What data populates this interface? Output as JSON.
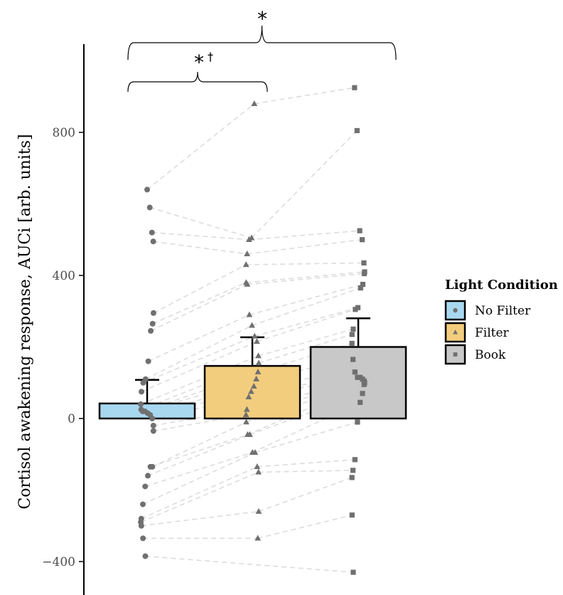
{
  "chart_data": {
    "type": "bar",
    "ylabel": "Cortisol awakening response, AUCi [arb. units]",
    "ylim": [
      -460,
      1000
    ],
    "yticks": [
      -400,
      0,
      400,
      800
    ],
    "categories": [
      "No Filter",
      "Filter",
      "Book"
    ],
    "colors": {
      "No Filter": "#a8d8f0",
      "Filter": "#f2cd7d",
      "Book": "#c8c8c8",
      "points": "#707070",
      "lines": "#dcdcdc"
    },
    "legend": {
      "title": "Light Condition",
      "items": [
        "No Filter",
        "Filter",
        "Book"
      ],
      "position": "right"
    },
    "bars": [
      {
        "name": "No Filter",
        "mean": 42,
        "error": 108,
        "marker": "circle"
      },
      {
        "name": "Filter",
        "mean": 147,
        "error": 227,
        "marker": "triangle"
      },
      {
        "name": "Book",
        "mean": 200,
        "error": 280,
        "marker": "square"
      }
    ],
    "points": {
      "No Filter": [
        640,
        590,
        520,
        495,
        295,
        265,
        245,
        160,
        110,
        100,
        75,
        40,
        25,
        20,
        20,
        15,
        10,
        0,
        -20,
        -35,
        -135,
        -135,
        -160,
        -190,
        -240,
        -280,
        -290,
        -300,
        -335,
        -385
      ],
      "Filter": [
        880,
        505,
        500,
        460,
        430,
        380,
        375,
        290,
        260,
        230,
        215,
        175,
        155,
        130,
        110,
        90,
        75,
        60,
        25,
        10,
        -10,
        -45,
        -45,
        -95,
        -95,
        -135,
        -150,
        -260,
        -335
      ],
      "Book": [
        925,
        805,
        525,
        500,
        435,
        410,
        405,
        375,
        365,
        310,
        305,
        250,
        235,
        210,
        165,
        130,
        115,
        115,
        110,
        105,
        100,
        95,
        70,
        45,
        -10,
        -115,
        -145,
        -165,
        -270,
        -430
      ]
    },
    "annotations": [
      {
        "between": [
          "No Filter",
          "Book"
        ],
        "label": "*"
      },
      {
        "between": [
          "No Filter",
          "Filter"
        ],
        "label": "*",
        "extra": "†"
      }
    ]
  }
}
